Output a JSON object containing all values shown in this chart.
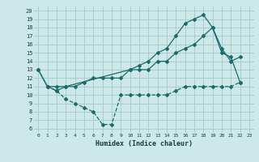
{
  "xlabel": "Humidex (Indice chaleur)",
  "bg_color": "#cce8e8",
  "grid_color": "#aacccc",
  "line_color": "#1a6b6b",
  "xlim": [
    -0.5,
    23.5
  ],
  "ylim": [
    5.5,
    20.5
  ],
  "xticks": [
    0,
    1,
    2,
    3,
    4,
    5,
    6,
    7,
    8,
    9,
    10,
    11,
    12,
    13,
    14,
    15,
    16,
    17,
    18,
    19,
    20,
    21,
    22,
    23
  ],
  "yticks": [
    6,
    7,
    8,
    9,
    10,
    11,
    12,
    13,
    14,
    15,
    16,
    17,
    18,
    19,
    20
  ],
  "curve1_x": [
    0,
    1,
    2,
    3,
    10,
    11,
    12,
    13,
    14,
    15,
    16,
    17,
    18,
    19,
    20,
    21,
    22
  ],
  "curve1_y": [
    13,
    11,
    10.5,
    11,
    13,
    13.5,
    14,
    15,
    15.5,
    17,
    18.5,
    19,
    19.5,
    18,
    15.5,
    14,
    14.5
  ],
  "curve2_x": [
    0,
    1,
    2,
    3,
    4,
    5,
    6,
    7,
    8,
    9,
    10,
    11,
    12,
    13,
    14,
    15,
    16,
    17,
    18,
    19,
    20,
    21,
    22
  ],
  "curve2_y": [
    13,
    11,
    11,
    11,
    11,
    11.5,
    12,
    12,
    12,
    12,
    13,
    13,
    13,
    14,
    14,
    15,
    15.5,
    16,
    17,
    18,
    15,
    14.5,
    11.5
  ],
  "curve3_x": [
    1,
    2,
    3,
    4,
    5,
    6,
    7,
    8,
    9,
    10,
    11,
    12,
    13,
    14,
    15,
    16,
    17,
    18,
    19,
    20,
    21,
    22
  ],
  "curve3_y": [
    11,
    10.5,
    9.5,
    9,
    8.5,
    8,
    6.5,
    6.5,
    10,
    10,
    10,
    10,
    10,
    10,
    10.5,
    11,
    11,
    11,
    11,
    11,
    11,
    11.5
  ]
}
